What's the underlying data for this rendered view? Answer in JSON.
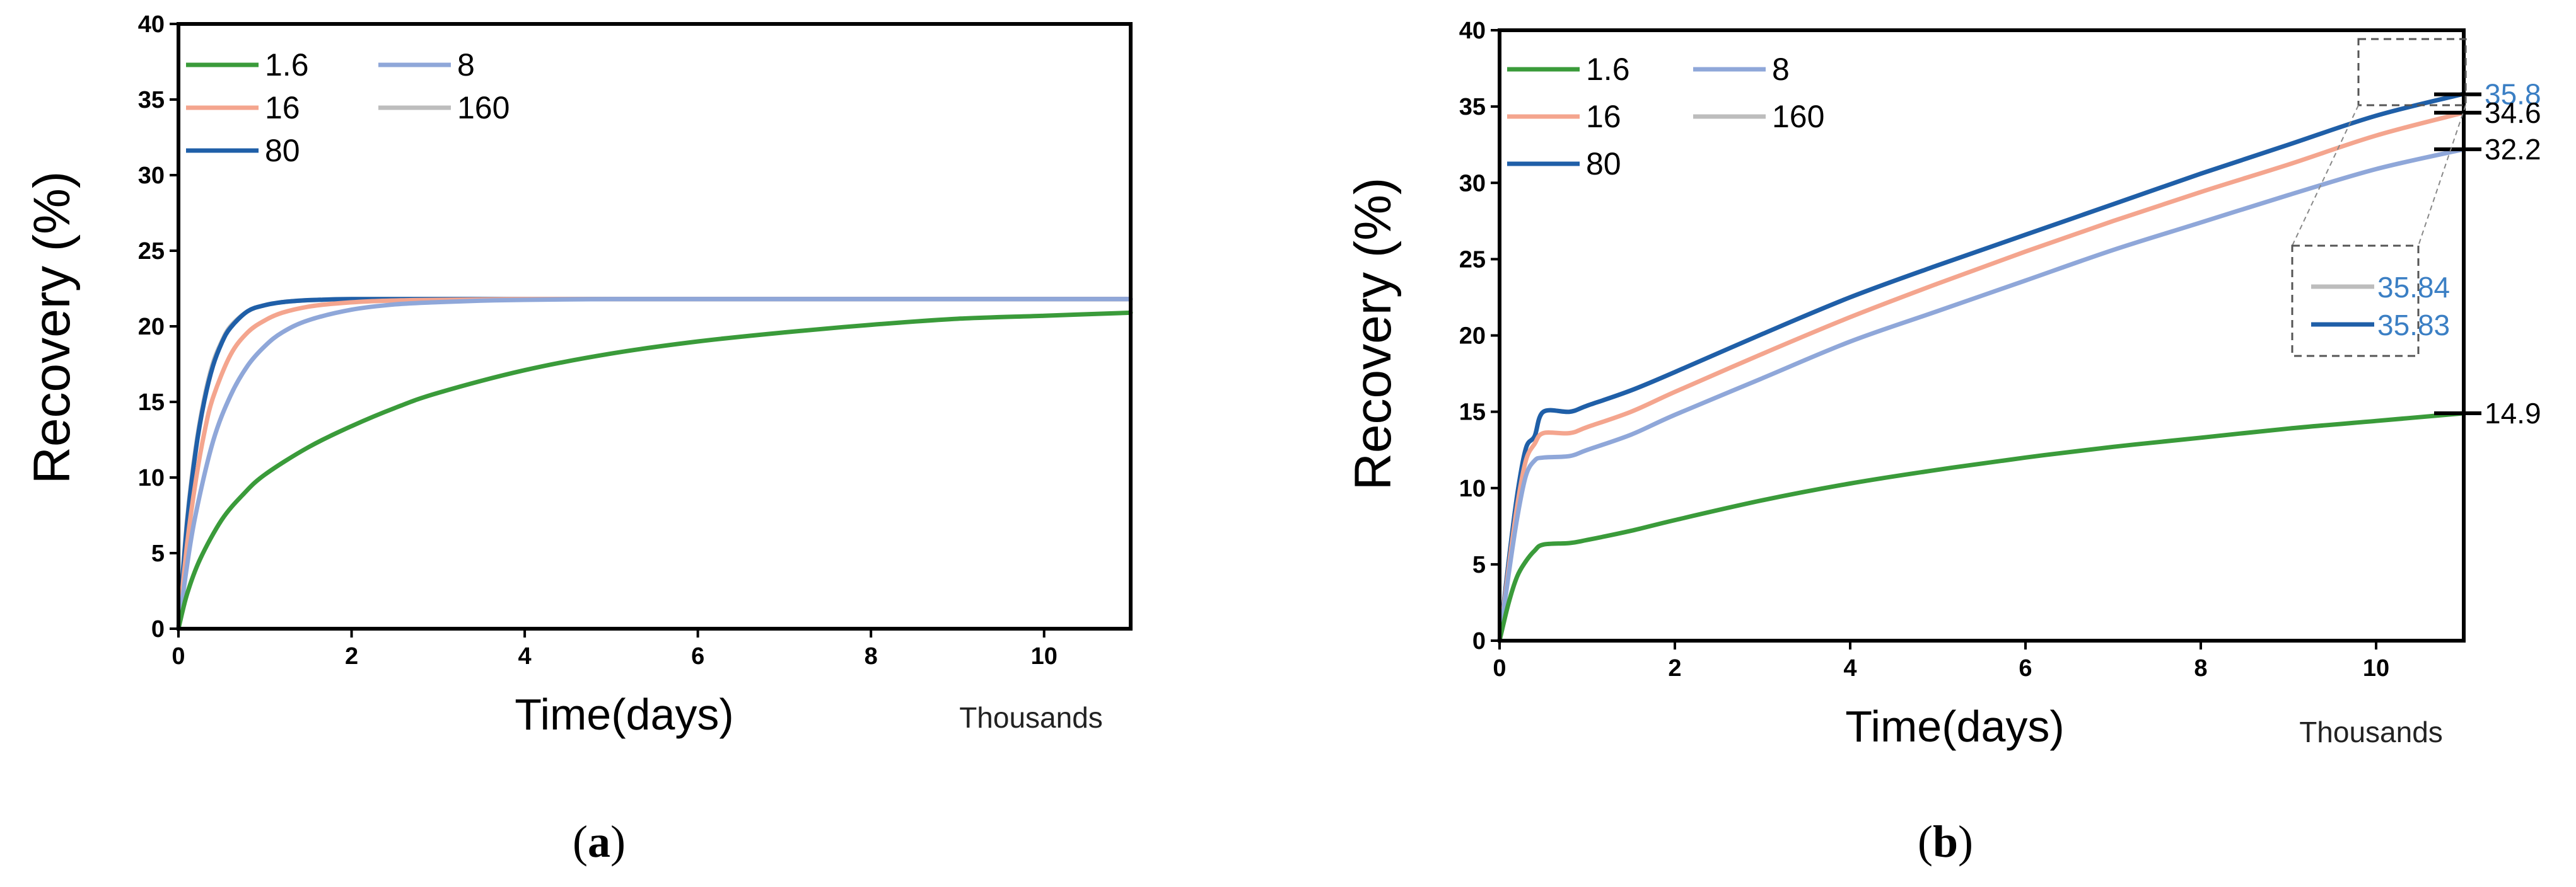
{
  "chart_data": [
    {
      "type": "line",
      "panel_label": "(a)",
      "panel_letter": "a",
      "xlabel": "Time(days)",
      "x_unit_note": "Thousands",
      "ylabel": "Recovery (%)",
      "xlim": [
        0,
        11
      ],
      "ylim": [
        0,
        40
      ],
      "xticks": [
        0,
        2,
        4,
        6,
        8,
        10
      ],
      "yticks": [
        0,
        5,
        10,
        15,
        20,
        25,
        30,
        35,
        40
      ],
      "legend": [
        {
          "name": "1.6",
          "color": "#3a9b3a"
        },
        {
          "name": "8",
          "color": "#8fa7d9"
        },
        {
          "name": "16",
          "color": "#f4a58e"
        },
        {
          "name": "160",
          "color": "#bdbdbd"
        },
        {
          "name": "80",
          "color": "#1f5fa8"
        }
      ],
      "series": [
        {
          "name": "160",
          "color": "#bdbdbd",
          "x": [
            0,
            0.1,
            0.2,
            0.3,
            0.4,
            0.5,
            0.6,
            0.8,
            1.0,
            1.2,
            1.4,
            1.6,
            2,
            3,
            4,
            6,
            8,
            10,
            11
          ],
          "y": [
            0,
            7.2,
            12.0,
            15.3,
            17.6,
            19.0,
            20.0,
            21.0,
            21.4,
            21.6,
            21.7,
            21.75,
            21.8,
            21.8,
            21.8,
            21.8,
            21.8,
            21.8,
            21.8
          ]
        },
        {
          "name": "80",
          "color": "#1f5fa8",
          "x": [
            0,
            0.1,
            0.2,
            0.3,
            0.4,
            0.5,
            0.6,
            0.8,
            1.0,
            1.2,
            1.4,
            1.6,
            2,
            3,
            4,
            6,
            8,
            10,
            11
          ],
          "y": [
            0,
            7.0,
            11.8,
            15.1,
            17.4,
            18.9,
            19.9,
            21.0,
            21.4,
            21.6,
            21.7,
            21.75,
            21.8,
            21.8,
            21.8,
            21.8,
            21.8,
            21.8,
            21.8
          ]
        },
        {
          "name": "16",
          "color": "#f4a58e",
          "x": [
            0,
            0.1,
            0.2,
            0.3,
            0.4,
            0.6,
            0.8,
            1.0,
            1.2,
            1.5,
            1.8,
            2.2,
            2.6,
            3,
            4,
            6,
            8,
            10,
            11
          ],
          "y": [
            0,
            5.6,
            9.8,
            13.0,
            15.3,
            18.1,
            19.6,
            20.4,
            20.9,
            21.3,
            21.5,
            21.65,
            21.72,
            21.75,
            21.8,
            21.8,
            21.8,
            21.8,
            21.8
          ]
        },
        {
          "name": "8",
          "color": "#8fa7d9",
          "x": [
            0,
            0.1,
            0.2,
            0.4,
            0.6,
            0.8,
            1.0,
            1.2,
            1.5,
            2.0,
            2.5,
            3.0,
            3.5,
            4,
            5,
            6,
            8,
            10,
            11
          ],
          "y": [
            0,
            4.2,
            7.6,
            12.4,
            15.4,
            17.4,
            18.7,
            19.6,
            20.4,
            21.1,
            21.45,
            21.6,
            21.7,
            21.75,
            21.8,
            21.8,
            21.8,
            21.8,
            21.8
          ]
        },
        {
          "name": "1.6",
          "color": "#3a9b3a",
          "x": [
            0,
            0.1,
            0.25,
            0.5,
            0.75,
            1.0,
            1.5,
            2.0,
            2.5,
            3.0,
            4.0,
            5.0,
            6.0,
            7.0,
            8.0,
            9.0,
            10.0,
            11.0
          ],
          "y": [
            0,
            2.3,
            4.6,
            7.2,
            8.9,
            10.2,
            12.0,
            13.4,
            14.6,
            15.6,
            17.1,
            18.2,
            19.0,
            19.6,
            20.1,
            20.5,
            20.7,
            20.9
          ]
        }
      ]
    },
    {
      "type": "line",
      "panel_label": "(b)",
      "panel_letter": "b",
      "xlabel": "Time(days)",
      "x_unit_note": "Thousands",
      "ylabel": "Recovery (%)",
      "xlim": [
        0,
        11
      ],
      "ylim": [
        0,
        40
      ],
      "xticks": [
        0,
        2,
        4,
        6,
        8,
        10
      ],
      "yticks": [
        0,
        5,
        10,
        15,
        20,
        25,
        30,
        35,
        40
      ],
      "legend": [
        {
          "name": "1.6",
          "color": "#3a9b3a"
        },
        {
          "name": "8",
          "color": "#8fa7d9"
        },
        {
          "name": "16",
          "color": "#f4a58e"
        },
        {
          "name": "160",
          "color": "#bdbdbd"
        },
        {
          "name": "80",
          "color": "#1f5fa8"
        }
      ],
      "series": [
        {
          "name": "160",
          "color": "#bdbdbd",
          "x": [
            0,
            0.1,
            0.2,
            0.3,
            0.4,
            0.5,
            0.8,
            1.0,
            1.5,
            2,
            3,
            4,
            5,
            6,
            7,
            8,
            9,
            10,
            11
          ],
          "y": [
            0,
            5.0,
            9.5,
            12.6,
            13.4,
            15.0,
            15.0,
            15.4,
            16.4,
            17.6,
            20.1,
            22.5,
            24.6,
            26.6,
            28.6,
            30.6,
            32.5,
            34.4,
            35.84
          ]
        },
        {
          "name": "80",
          "color": "#1f5fa8",
          "x": [
            0,
            0.1,
            0.2,
            0.3,
            0.4,
            0.5,
            0.8,
            1.0,
            1.5,
            2,
            3,
            4,
            5,
            6,
            7,
            8,
            9,
            10,
            11
          ],
          "y": [
            0,
            5.0,
            9.5,
            12.6,
            13.4,
            15.0,
            15.0,
            15.4,
            16.4,
            17.6,
            20.1,
            22.5,
            24.6,
            26.6,
            28.6,
            30.6,
            32.5,
            34.4,
            35.83
          ]
        },
        {
          "name": "16",
          "color": "#f4a58e",
          "x": [
            0,
            0.1,
            0.2,
            0.3,
            0.4,
            0.5,
            0.8,
            1.0,
            1.5,
            2,
            3,
            4,
            5,
            6,
            7,
            8,
            9,
            10,
            11
          ],
          "y": [
            0,
            4.6,
            8.8,
            11.8,
            12.9,
            13.6,
            13.6,
            14.0,
            15.0,
            16.3,
            18.8,
            21.2,
            23.4,
            25.5,
            27.5,
            29.4,
            31.2,
            33.1,
            34.6
          ]
        },
        {
          "name": "8",
          "color": "#8fa7d9",
          "x": [
            0,
            0.1,
            0.2,
            0.3,
            0.4,
            0.5,
            0.8,
            1.0,
            1.5,
            2,
            3,
            4,
            5,
            6,
            7,
            8,
            9,
            10,
            11
          ],
          "y": [
            0,
            4.2,
            8.0,
            10.8,
            11.8,
            12.0,
            12.1,
            12.5,
            13.5,
            14.8,
            17.2,
            19.6,
            21.6,
            23.6,
            25.6,
            27.4,
            29.2,
            30.9,
            32.2
          ]
        },
        {
          "name": "1.6",
          "color": "#3a9b3a",
          "x": [
            0,
            0.1,
            0.2,
            0.3,
            0.4,
            0.5,
            0.8,
            1.0,
            1.5,
            2,
            3,
            4,
            5,
            6,
            7,
            8,
            9,
            10,
            11
          ],
          "y": [
            0,
            2.4,
            4.2,
            5.2,
            5.9,
            6.3,
            6.4,
            6.6,
            7.2,
            7.9,
            9.2,
            10.3,
            11.2,
            12.0,
            12.7,
            13.3,
            13.9,
            14.4,
            14.9
          ]
        }
      ],
      "end_labels": [
        {
          "text": "35.8",
          "value": 35.8,
          "color": "#3b7fc4"
        },
        {
          "text": "34.6",
          "value": 34.6,
          "color": "#000000"
        },
        {
          "text": "32.2",
          "value": 32.2,
          "color": "#000000"
        },
        {
          "text": "14.9",
          "value": 14.9,
          "color": "#000000"
        }
      ],
      "inset_labels": [
        {
          "text": "35.84",
          "series": "160",
          "line_color": "#bdbdbd",
          "text_color": "#3b7fc4"
        },
        {
          "text": "35.83",
          "series": "80",
          "line_color": "#1f5fa8",
          "text_color": "#3b7fc4"
        }
      ]
    }
  ]
}
